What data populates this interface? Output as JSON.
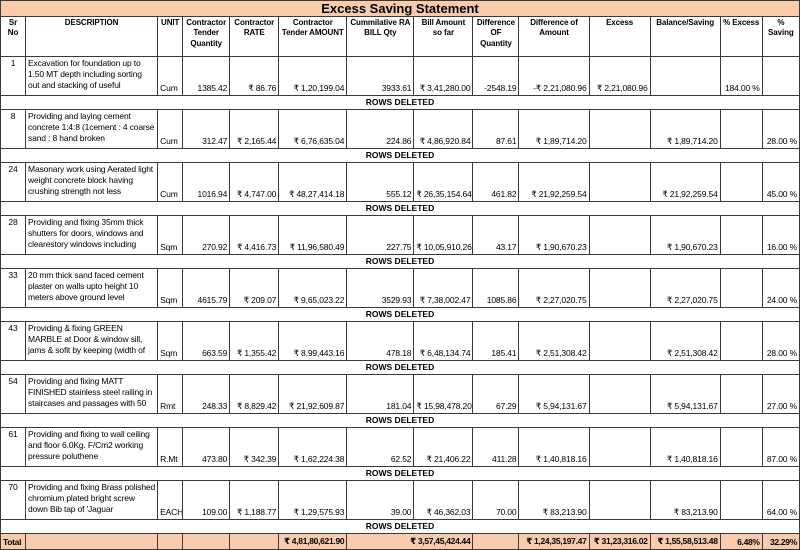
{
  "title": "Excess Saving Statement",
  "labels": {
    "rows_deleted": "ROWS DELETED"
  },
  "colors": {
    "accent_peach": "#F8CBAD",
    "border": "#3a3a3a",
    "text": "#000000"
  },
  "columns": [
    {
      "key": "sr",
      "label": "Sr No"
    },
    {
      "key": "description",
      "label": "DESCRIPTION"
    },
    {
      "key": "unit",
      "label": "UNIT"
    },
    {
      "key": "tender_qty",
      "label": "Contractor Tender Quantity"
    },
    {
      "key": "rate",
      "label": "Contractor RATE"
    },
    {
      "key": "tender_amount",
      "label": "Contractor Tender AMOUNT"
    },
    {
      "key": "ra_bill_qty",
      "label": "Cummilative RA BILL Qty"
    },
    {
      "key": "bill_amount",
      "label": "Bill Amount so far"
    },
    {
      "key": "diff_qty",
      "label": "Difference OF Quantity"
    },
    {
      "key": "diff_amount",
      "label": "Difference of Amount"
    },
    {
      "key": "excess",
      "label": "Excess"
    },
    {
      "key": "balance_saving",
      "label": "Balance/Saving"
    },
    {
      "key": "pct_excess",
      "label": "% Excess"
    },
    {
      "key": "pct_saving",
      "label": "% Saving"
    }
  ],
  "rows": [
    {
      "sr": "1",
      "description": "Excavation for foundation up to 1.50 MT depth including sorting out and stacking of useful",
      "unit": "Cum",
      "tender_qty": "1385.42",
      "rate": "₹ 86.76",
      "tender_amount": "₹ 1,20,199.04",
      "ra_bill_qty": "3933.61",
      "bill_amount": "₹ 3,41,280.00",
      "diff_qty": "-2548.19",
      "diff_amount": "-₹ 2,21,080.96",
      "excess": "₹ 2,21,080.96",
      "balance_saving": "",
      "pct_excess": "184.00 %",
      "pct_saving": ""
    },
    {
      "sr": "8",
      "description": "Providing and laying cement concrete 1:4:8 (1cement : 4 coarse sand : 8 hand broken",
      "unit": "Cum",
      "tender_qty": "312.47",
      "rate": "₹ 2,165.44",
      "tender_amount": "₹ 6,76,635.04",
      "ra_bill_qty": "224.86",
      "bill_amount": "₹ 4,86,920.84",
      "diff_qty": "87.61",
      "diff_amount": "₹ 1,89,714.20",
      "excess": "",
      "balance_saving": "₹ 1,89,714.20",
      "pct_excess": "",
      "pct_saving": "28.00 %"
    },
    {
      "sr": "24",
      "description": "Masonary work using Aerated light weight concrete block having crushing strength not less",
      "unit": "Cum",
      "tender_qty": "1016.94",
      "rate": "₹ 4,747.00",
      "tender_amount": "₹ 48,27,414.18",
      "ra_bill_qty": "555.12",
      "bill_amount": "₹ 26,35,154.64",
      "diff_qty": "461.82",
      "diff_amount": "₹ 21,92,259.54",
      "excess": "",
      "balance_saving": "₹ 21,92,259.54",
      "pct_excess": "",
      "pct_saving": "45.00 %"
    },
    {
      "sr": "28",
      "description": "Providing and fixing 35mm thick shutters for doors, windows and clearestory windows including",
      "unit": "Sqm",
      "tender_qty": "270.92",
      "rate": "₹ 4,416.73",
      "tender_amount": "₹ 11,96,580.49",
      "ra_bill_qty": "227.75",
      "bill_amount": "₹ 10,05,910.26",
      "diff_qty": "43.17",
      "diff_amount": "₹ 1,90,670.23",
      "excess": "",
      "balance_saving": "₹ 1,90,670.23",
      "pct_excess": "",
      "pct_saving": "16.00 %"
    },
    {
      "sr": "33",
      "description": "20 mm thick sand faced cement plaster on  walls upto height 10 meters above ground level",
      "unit": "Sqm",
      "tender_qty": "4615.79",
      "rate": "₹ 209.07",
      "tender_amount": "₹ 9,65,023.22",
      "ra_bill_qty": "3529.93",
      "bill_amount": "₹ 7,38,002.47",
      "diff_qty": "1085.86",
      "diff_amount": "₹ 2,27,020.75",
      "excess": "",
      "balance_saving": "₹ 2,27,020.75",
      "pct_excess": "",
      "pct_saving": "24.00 %"
    },
    {
      "sr": "43",
      "description": "Providing & fixing GREEN MARBLE at  Door & window sill, jams & sofit by keeping (width of",
      "unit": "Sqm",
      "tender_qty": "663.59",
      "rate": "₹ 1,355.42",
      "tender_amount": "₹ 8,99,443.16",
      "ra_bill_qty": "478.18",
      "bill_amount": "₹ 6,48,134.74",
      "diff_qty": "185.41",
      "diff_amount": "₹ 2,51,308.42",
      "excess": "",
      "balance_saving": "₹ 2,51,308.42",
      "pct_excess": "",
      "pct_saving": "28.00 %"
    },
    {
      "sr": "54",
      "description": "Providing and fixing MATT FINISHED stainless steel railing in staircases and passages with 50",
      "unit": "Rmt",
      "tender_qty": "248.33",
      "rate": "₹ 8,829.42",
      "tender_amount": "₹ 21,92,609.87",
      "ra_bill_qty": "181.04",
      "bill_amount": "₹ 15,98,478.20",
      "diff_qty": "67.29",
      "diff_amount": "₹ 5,94,131.67",
      "excess": "",
      "balance_saving": "₹ 5,94,131.67",
      "pct_excess": "",
      "pct_saving": "27.00 %"
    },
    {
      "sr": "61",
      "description": "Providing and fixing to wall ceiling and floor 6.0Kg. F/Cm2 working pressure poluthene",
      "unit": "R.Mt",
      "tender_qty": "473.80",
      "rate": "₹ 342.39",
      "tender_amount": "₹ 1,62,224.38",
      "ra_bill_qty": "62.52",
      "bill_amount": "₹ 21,406.22",
      "diff_qty": "411.28",
      "diff_amount": "₹ 1,40,818.16",
      "excess": "",
      "balance_saving": "₹ 1,40,818.16",
      "pct_excess": "",
      "pct_saving": "87.00 %"
    },
    {
      "sr": "70",
      "description": "Providing and fixing Brass polished chromium plated bright screw down Bib tap of 'Jaguar",
      "unit": "EACH",
      "tender_qty": "109.00",
      "rate": "₹ 1,188.77",
      "tender_amount": "₹ 1,29,575.93",
      "ra_bill_qty": "39.00",
      "bill_amount": "₹ 46,362.03",
      "diff_qty": "70.00",
      "diff_amount": "₹ 83,213.90",
      "excess": "",
      "balance_saving": "₹ 83,213.90",
      "pct_excess": "",
      "pct_saving": "64.00 %"
    }
  ],
  "total": {
    "label": "Total",
    "tender_amount": "₹ 4,81,80,621.90",
    "bill_amount": "₹ 3,57,45,424.44",
    "diff_amount": "₹ 1,24,35,197.47",
    "excess": "₹ 31,23,316.02",
    "balance_saving": "₹ 1,55,58,513.48",
    "pct_excess": "6.48%",
    "pct_saving": "32.29%"
  }
}
